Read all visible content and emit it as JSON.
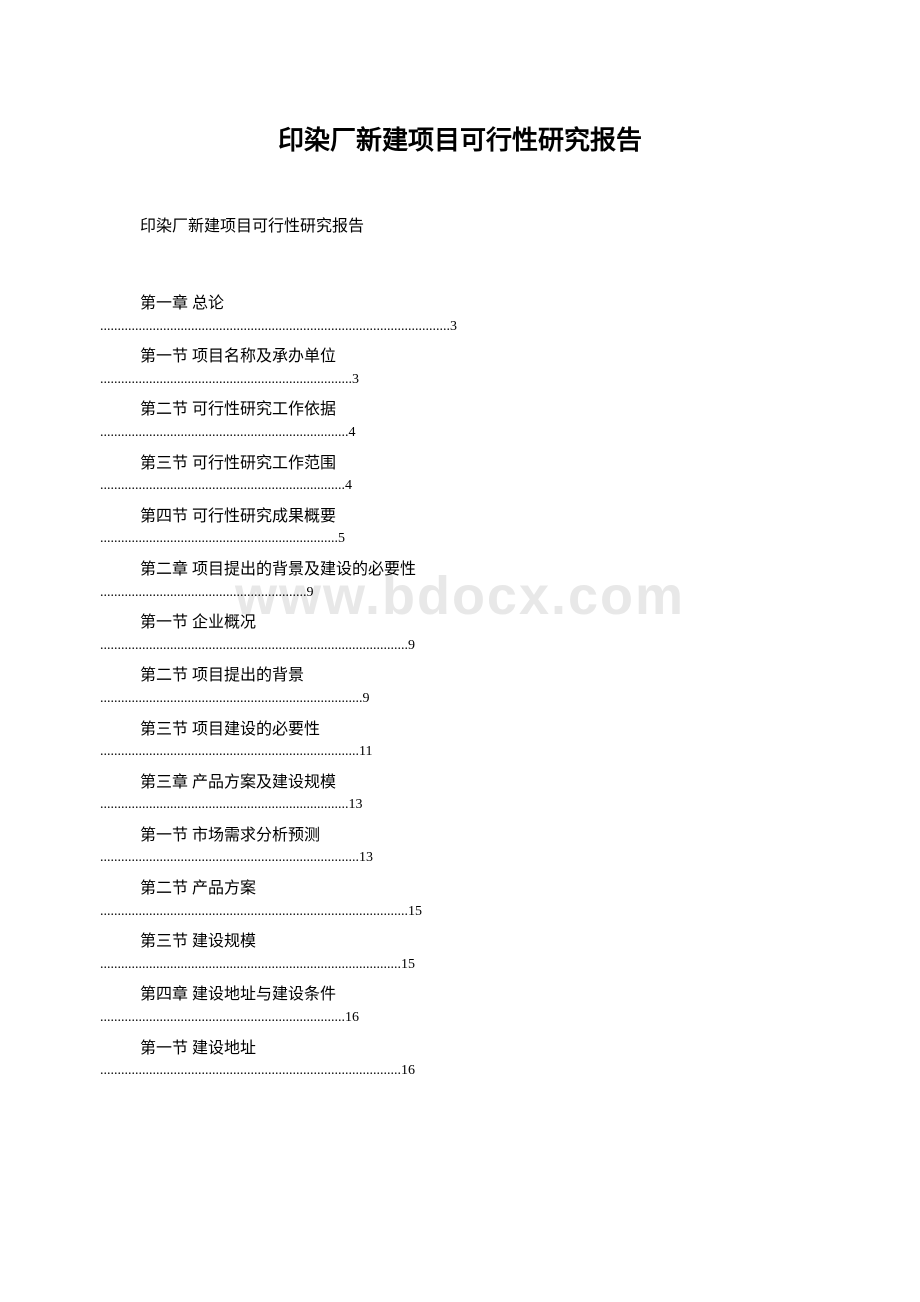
{
  "document": {
    "title": "印染厂新建项目可行性研究报告",
    "subtitle": "印染厂新建项目可行性研究报告",
    "watermark": "www.bdocx.com",
    "title_fontsize": 26,
    "body_fontsize": 16,
    "text_color": "#000000",
    "background_color": "#ffffff",
    "watermark_color": "#e8e8e8",
    "watermark_fontsize": 54
  },
  "toc": [
    {
      "label": "第一章 总论",
      "page": "3",
      "dots_width": 720
    },
    {
      "label": "第一节 项目名称及承办单位",
      "page": "3",
      "dots_width": 530
    },
    {
      "label": "第二节 可行性研究工作依据",
      "page": "4",
      "dots_width": 520
    },
    {
      "label": "第三节 可行性研究工作范围",
      "page": "4",
      "dots_width": 510
    },
    {
      "label": "第四节 可行性研究成果概要",
      "page": "5",
      "dots_width": 500
    },
    {
      "label": "第二章 项目提出的背景及建设的必要性",
      "page": "9",
      "dots_width": 435
    },
    {
      "label": "第一节 企业概况",
      "page": "9",
      "dots_width": 640
    },
    {
      "label": "第二节 项目提出的背景",
      "page": "9",
      "dots_width": 550
    },
    {
      "label": "第三节 项目建设的必要性",
      "page": "11",
      "dots_width": 540
    },
    {
      "label": "第三章 产品方案及建设规模",
      "page": "13",
      "dots_width": 520
    },
    {
      "label": "第一节 市场需求分析预测",
      "page": "13",
      "dots_width": 540
    },
    {
      "label": "第二节 产品方案",
      "page": "15",
      "dots_width": 640
    },
    {
      "label": "第三节 建设规模",
      "page": "15",
      "dots_width": 625
    },
    {
      "label": "第四章 建设地址与建设条件",
      "page": "16",
      "dots_width": 510
    },
    {
      "label": "第一节 建设地址",
      "page": "16",
      "dots_width": 625
    }
  ]
}
